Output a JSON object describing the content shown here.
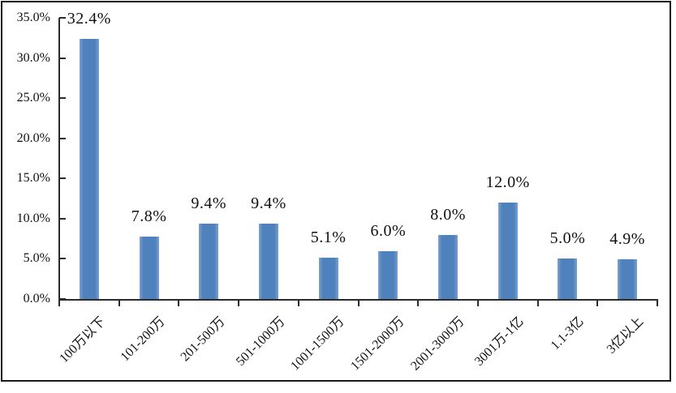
{
  "chart_data": {
    "type": "bar",
    "title": "",
    "xlabel": "",
    "ylabel": "",
    "categories": [
      "100万以下",
      "101-200万",
      "201-500万",
      "501-1000万",
      "1001-1500万",
      "1501-2000万",
      "2001-3000万",
      "3001万-1亿",
      "1.1-3亿",
      "3亿以上"
    ],
    "values": [
      32.4,
      7.8,
      9.4,
      9.4,
      5.1,
      6.0,
      8.0,
      12.0,
      5.0,
      4.9
    ],
    "value_labels": [
      "32.4%",
      "7.8%",
      "9.4%",
      "9.4%",
      "5.1%",
      "6.0%",
      "8.0%",
      "12.0%",
      "5.0%",
      "4.9%"
    ],
    "ylim": [
      0,
      35
    ],
    "ytick_step": 5,
    "ytick_labels": [
      "0.0%",
      "5.0%",
      "10.0%",
      "15.0%",
      "20.0%",
      "25.0%",
      "30.0%",
      "35.0%"
    ],
    "grid": false,
    "legend": null,
    "colors": {
      "bar_fill": "#4f81bd",
      "bar_edge_highlight": "#7da1cd",
      "axis": "#2b2b2b",
      "text": "#111111",
      "frame_border": "#1a1a1a",
      "background": "#ffffff"
    }
  }
}
